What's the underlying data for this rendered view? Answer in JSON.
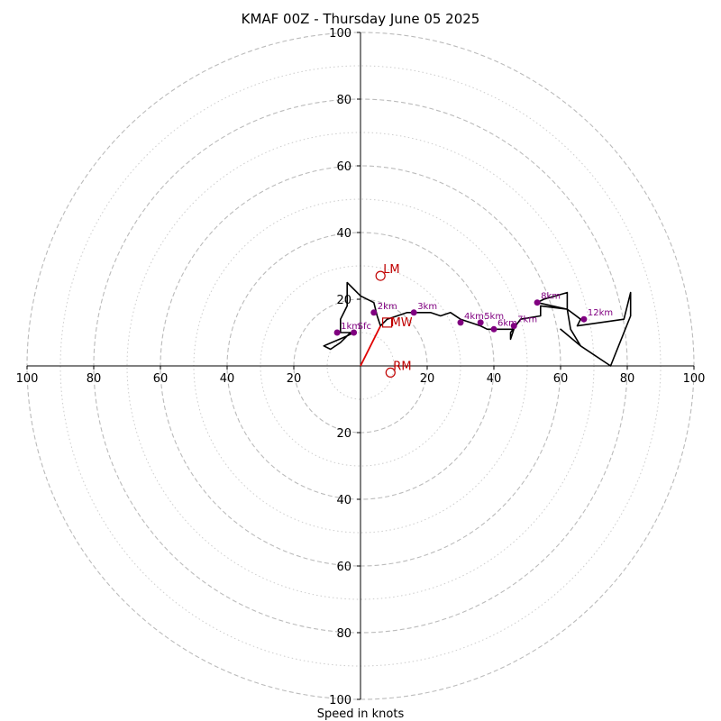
{
  "chart_data": {
    "type": "scatter",
    "title": "KMAF 00Z - Thursday June 05 2025",
    "xlabel": "Speed in knots",
    "rings": {
      "major": [
        20,
        40,
        60,
        80,
        100
      ],
      "minor": [
        10,
        30,
        50,
        70,
        90
      ],
      "max": 100
    },
    "axis_ticks": [
      "100",
      "80",
      "60",
      "40",
      "20",
      "20",
      "40",
      "60",
      "80",
      "100"
    ],
    "axis_tick_values": [
      -100,
      -80,
      -60,
      -40,
      -20,
      20,
      40,
      60,
      80,
      100
    ],
    "hodograph_trace": [
      [
        -2,
        10
      ],
      [
        -4,
        9
      ],
      [
        -11,
        6
      ],
      [
        -9,
        5
      ],
      [
        -6,
        7
      ],
      [
        -3,
        10
      ],
      [
        -6,
        10
      ],
      [
        -6,
        14
      ],
      [
        -4,
        18
      ],
      [
        -4,
        25
      ],
      [
        0,
        21
      ],
      [
        4,
        19
      ],
      [
        5,
        15
      ],
      [
        6,
        12
      ],
      [
        8,
        14
      ],
      [
        11,
        15
      ],
      [
        14,
        16
      ],
      [
        17,
        16
      ],
      [
        21,
        16
      ],
      [
        24,
        15
      ],
      [
        27,
        16
      ],
      [
        30,
        14
      ],
      [
        33,
        13
      ],
      [
        36,
        12
      ],
      [
        38,
        11
      ],
      [
        40,
        11
      ],
      [
        43,
        11
      ],
      [
        46,
        11
      ],
      [
        45,
        8
      ],
      [
        45,
        10
      ],
      [
        48,
        14
      ],
      [
        54,
        15
      ],
      [
        54,
        18
      ],
      [
        62,
        17
      ],
      [
        63,
        11
      ],
      [
        66,
        6
      ],
      [
        60,
        11
      ],
      [
        66,
        6
      ],
      [
        75,
        0
      ],
      [
        81,
        15
      ],
      [
        81,
        22
      ],
      [
        79,
        14
      ],
      [
        65,
        12
      ],
      [
        66,
        14
      ],
      [
        62,
        17
      ],
      [
        53,
        19
      ],
      [
        55,
        20
      ],
      [
        62,
        22
      ],
      [
        62,
        17
      ],
      [
        53,
        19
      ]
    ],
    "height_markers": [
      {
        "label": "Sfc",
        "u": -2,
        "v": 10
      },
      {
        "label": "1km",
        "u": -7,
        "v": 10
      },
      {
        "label": "2km",
        "u": 4,
        "v": 16
      },
      {
        "label": "3km",
        "u": 16,
        "v": 16
      },
      {
        "label": "4km",
        "u": 30,
        "v": 13
      },
      {
        "label": "5km",
        "u": 36,
        "v": 13
      },
      {
        "label": "6km",
        "u": 40,
        "v": 11
      },
      {
        "label": "7km",
        "u": 46,
        "v": 12
      },
      {
        "label": "8km",
        "u": 53,
        "v": 19
      },
      {
        "label": "12km",
        "u": 67,
        "v": 14
      }
    ],
    "storm_motion": {
      "LM": {
        "label": "LM",
        "u": 6,
        "v": 27
      },
      "MW": {
        "label": "MW",
        "u": 8,
        "v": 13
      },
      "RM": {
        "label": "RM",
        "u": 9,
        "v": -2
      }
    },
    "shear_vector": {
      "from": [
        0,
        0
      ],
      "to": [
        6,
        12
      ]
    },
    "colors": {
      "trace": "#000000",
      "markers": "#800080",
      "storm_motion": "#c00000",
      "shear_vector": "#e00000",
      "rings": "#bbbbbb",
      "minor_rings": "#cccccc"
    }
  }
}
